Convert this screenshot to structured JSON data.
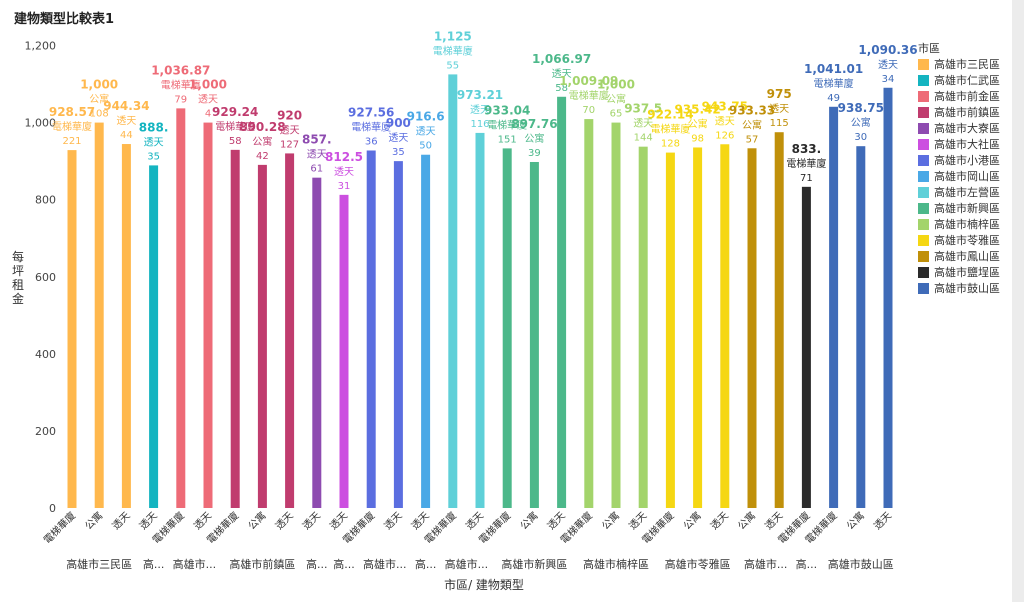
{
  "title": "建物類型比較表1",
  "chart_data": {
    "type": "bar",
    "xlabel": "市區/ 建物類型",
    "ylabel": "每坪租金",
    "ylim": [
      0,
      1200
    ],
    "yticks": [
      "0",
      "200",
      "400",
      "600",
      "800",
      "1,000",
      "1,200"
    ],
    "legend_title": "市區",
    "legend_position": "right",
    "grid": false,
    "groups": [
      {
        "name": "高雄市三民區",
        "label": "高雄市三民區",
        "color": "#ffb84d",
        "bars": [
          {
            "type": "電梯華廈",
            "value": 928.57,
            "value_label": "928.57",
            "count": "221"
          },
          {
            "type": "公寓",
            "value": 1000,
            "value_label": "1,000",
            "count": "108"
          },
          {
            "type": "透天",
            "value": 944.34,
            "value_label": "944.34",
            "count": "44"
          }
        ]
      },
      {
        "name": "高雄市仁武區",
        "label": "高...",
        "color": "#14b4c0",
        "bars": [
          {
            "type": "透天",
            "value": 888.9,
            "value_label": "888.",
            "count": "35"
          }
        ]
      },
      {
        "name": "高雄市前金區",
        "label": "高雄市...",
        "color": "#ee6b77",
        "bars": [
          {
            "type": "電梯華廈",
            "value": 1036.87,
            "value_label": "1,036.87",
            "count": "79"
          },
          {
            "type": "透天",
            "value": 1000,
            "value_label": "1,000",
            "count": "4"
          }
        ]
      },
      {
        "name": "高雄市前鎮區",
        "label": "高雄市前鎮區",
        "color": "#c03c6e",
        "bars": [
          {
            "type": "電梯華廈",
            "value": 929.24,
            "value_label": "929.24",
            "count": "58"
          },
          {
            "type": "公寓",
            "value": 890.28,
            "value_label": "890.28",
            "count": "42"
          },
          {
            "type": "透天",
            "value": 920,
            "value_label": "920",
            "count": "127"
          }
        ]
      },
      {
        "name": "高雄市大寮區",
        "label": "高...",
        "color": "#8e4bb0",
        "bars": [
          {
            "type": "透天",
            "value": 857.1,
            "value_label": "857.",
            "count": "61"
          }
        ]
      },
      {
        "name": "高雄市大社區",
        "label": "高...",
        "color": "#cc4fe0",
        "bars": [
          {
            "type": "透天",
            "value": 812.5,
            "value_label": "812.5",
            "count": "31"
          }
        ]
      },
      {
        "name": "高雄市小港區",
        "label": "高雄市...",
        "color": "#5b6ee0",
        "bars": [
          {
            "type": "電梯華廈",
            "value": 927.56,
            "value_label": "927.56",
            "count": "36"
          },
          {
            "type": "透天",
            "value": 900,
            "value_label": "900",
            "count": "35"
          }
        ]
      },
      {
        "name": "高雄市岡山區",
        "label": "高...",
        "color": "#4aa8e6",
        "bars": [
          {
            "type": "透天",
            "value": 916.6,
            "value_label": "916.6",
            "count": "50"
          }
        ]
      },
      {
        "name": "高雄市左營區",
        "label": "高雄市...",
        "color": "#5fd0d8",
        "bars": [
          {
            "type": "電梯華廈",
            "value": 1125,
            "value_label": "1,125",
            "count": "55"
          },
          {
            "type": "透天",
            "value": 973.21,
            "value_label": "973.21",
            "count": "116"
          }
        ]
      },
      {
        "name": "高雄市新興區",
        "label": "高雄市新興區",
        "color": "#4cb88a",
        "bars": [
          {
            "type": "電梯華廈",
            "value": 933.04,
            "value_label": "933.04",
            "count": "151"
          },
          {
            "type": "公寓",
            "value": 897.76,
            "value_label": "897.76",
            "count": "39"
          },
          {
            "type": "透天",
            "value": 1066.97,
            "value_label": "1,066.97",
            "count": "58"
          }
        ]
      },
      {
        "name": "高雄市楠梓區",
        "label": "高雄市楠梓區",
        "color": "#a3d46b",
        "bars": [
          {
            "type": "電梯華廈",
            "value": 1009.09,
            "value_label": "1,009.09",
            "count": "70"
          },
          {
            "type": "公寓",
            "value": 1000,
            "value_label": "1,000",
            "count": "65"
          },
          {
            "type": "透天",
            "value": 937.5,
            "value_label": "937.5",
            "count": "144"
          }
        ]
      },
      {
        "name": "高雄市苓雅區",
        "label": "高雄市苓雅區",
        "color": "#f5d713",
        "bars": [
          {
            "type": "電梯華廈",
            "value": 922.14,
            "value_label": "922.14",
            "count": "128"
          },
          {
            "type": "公寓",
            "value": 935.42,
            "value_label": "935.42",
            "count": "98"
          },
          {
            "type": "透天",
            "value": 943.75,
            "value_label": "943.75",
            "count": "126"
          }
        ]
      },
      {
        "name": "高雄市鳳山區",
        "label": "高雄市...",
        "color": "#c0900a",
        "bars": [
          {
            "type": "公寓",
            "value": 933.33,
            "value_label": "933.33",
            "count": "57"
          },
          {
            "type": "透天",
            "value": 975,
            "value_label": "975",
            "count": "115"
          }
        ]
      },
      {
        "name": "高雄市鹽埕區",
        "label": "高...",
        "color": "#2b2b2b",
        "bars": [
          {
            "type": "電梯華廈",
            "value": 833.3,
            "value_label": "833.",
            "count": "71"
          }
        ]
      },
      {
        "name": "高雄市鼓山區",
        "label": "高雄市鼓山區",
        "color": "#3f6bb8",
        "bars": [
          {
            "type": "電梯華廈",
            "value": 1041.01,
            "value_label": "1,041.01",
            "count": "49"
          },
          {
            "type": "公寓",
            "value": 938.75,
            "value_label": "938.75",
            "count": "30"
          },
          {
            "type": "透天",
            "value": 1090.36,
            "value_label": "1,090.36",
            "count": "34"
          }
        ]
      }
    ]
  }
}
